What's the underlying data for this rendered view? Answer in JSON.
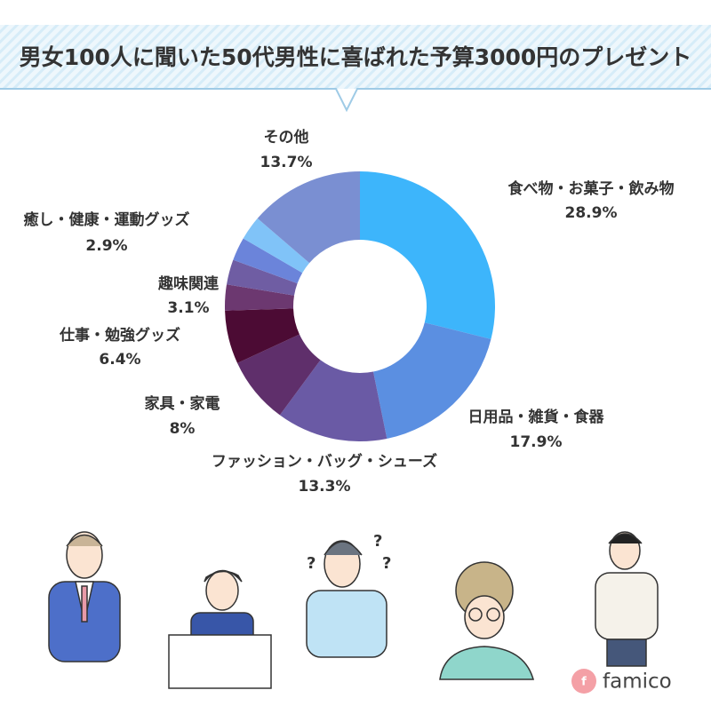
{
  "header": {
    "title": "男女100人に聞いた50代男性に喜ばれた予算3000円のプレゼント"
  },
  "chart_data": {
    "type": "donut",
    "categories": [
      "食べ物・お菓子・飲み物",
      "日用品・雑貨・食器",
      "ファッション・バッグ・シューズ",
      "家具・家電",
      "仕事・勉強グッズ",
      "趣味関連",
      null,
      null,
      "癒し・健康・運動グッズ",
      "その他"
    ],
    "values": [
      28.9,
      17.9,
      13.3,
      8,
      6.4,
      3.1,
      3.0,
      2.8,
      2.9,
      13.7
    ],
    "value_labels": [
      "28.9%",
      "17.9%",
      "13.3%",
      "8%",
      "6.4%",
      "3.1%",
      null,
      null,
      "2.9%",
      "13.7%"
    ],
    "colors": [
      "#3db5fb",
      "#5b8fe1",
      "#6a5aa5",
      "#5f2f6b",
      "#4c0b34",
      "#6c3870",
      "#6f5da3",
      "#6b84da",
      "#80c3f8",
      "#7a8fd2"
    ]
  },
  "footer": {
    "logo": "famico"
  }
}
